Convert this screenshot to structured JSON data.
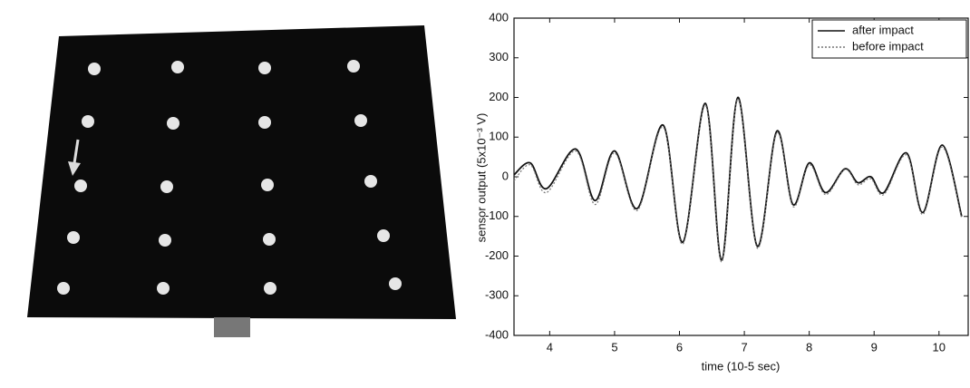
{
  "chart_data": {
    "type": "line",
    "xlabel": "time (10-5 sec)",
    "ylabel": "sensor output  (5x10⁻³ V)",
    "x": [
      3.45,
      3.7,
      3.95,
      4.4,
      4.7,
      5.0,
      5.35,
      5.75,
      6.05,
      6.4,
      6.65,
      6.9,
      7.2,
      7.5,
      7.75,
      8.0,
      8.25,
      8.55,
      8.75,
      8.95,
      9.15,
      9.5,
      9.75,
      10.05,
      10.35
    ],
    "series": [
      {
        "name": "after impact",
        "color": "#111111",
        "dash": "none",
        "values": [
          5,
          35,
          -30,
          70,
          -60,
          65,
          -80,
          130,
          -165,
          185,
          -210,
          200,
          -175,
          115,
          -70,
          35,
          -40,
          20,
          -15,
          0,
          -40,
          60,
          -90,
          80,
          -100
        ]
      },
      {
        "name": "before impact",
        "color": "#777777",
        "dash": "2 2",
        "values": [
          -10,
          30,
          -40,
          65,
          -70,
          60,
          -85,
          125,
          -170,
          180,
          -215,
          195,
          -180,
          110,
          -75,
          30,
          -45,
          18,
          -20,
          -5,
          -45,
          55,
          -95,
          75,
          -105
        ]
      }
    ],
    "xlim": [
      3.45,
      10.45
    ],
    "xticks": [
      4,
      5,
      6,
      7,
      8,
      9,
      10
    ],
    "ylim": [
      -400,
      400
    ],
    "yticks": [
      -400,
      -300,
      -200,
      -100,
      0,
      100,
      200,
      300,
      400
    ],
    "legend": "upper right",
    "grid": false
  }
}
